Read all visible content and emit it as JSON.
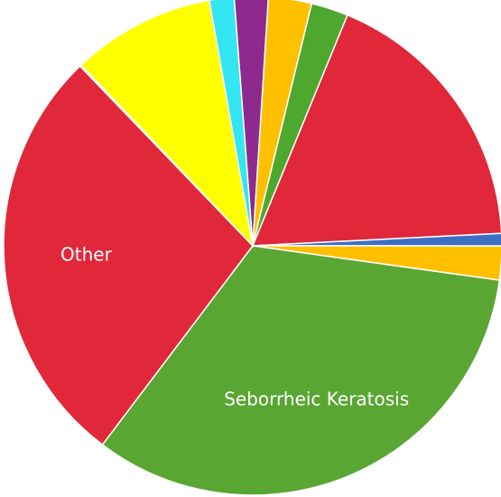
{
  "chart_data": {
    "type": "pie",
    "start_angle": -4.3,
    "categories": [
      null,
      null,
      null,
      null,
      null,
      null,
      "Seborrheic Keratosis",
      "Other",
      null,
      null,
      null
    ],
    "values": [
      2.2,
      2.8,
      2.4,
      18.0,
      0.8,
      2.2,
      33.1,
      27.5,
      0.1,
      9.3,
      1.6
    ],
    "colors": [
      "#8e2a8e",
      "#ffc000",
      "#4ea72e",
      "#e0283a",
      "#3a6fc4",
      "#ffc000",
      "#5aa632",
      "#e0283a",
      "#3a6fc4",
      "#ffff00",
      "#33e6f2"
    ]
  }
}
